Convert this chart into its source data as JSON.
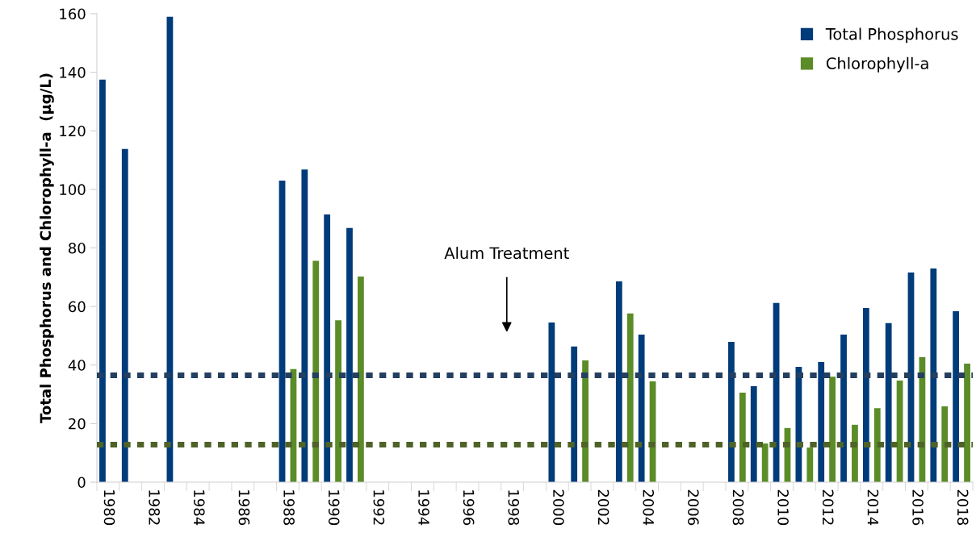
{
  "chart_data": {
    "type": "bar",
    "ylabel": "Total Phosphorus and Chlorophyll-a  (µg/L)",
    "categories": [
      "1980",
      null,
      "1982",
      null,
      "1984",
      null,
      "1986",
      null,
      "1988",
      null,
      "1990",
      null,
      "1992",
      null,
      "1994",
      null,
      "1996",
      null,
      "1998",
      null,
      "2000",
      null,
      "2002",
      null,
      "2004",
      null,
      "2006",
      null,
      "2008",
      null,
      "2010",
      null,
      "2012",
      null,
      "2014",
      null,
      "2016",
      null,
      "2018"
    ],
    "series": [
      {
        "name": "Total Phosphorus",
        "color": "#003b7a",
        "values": [
          137.5,
          113.8,
          null,
          159,
          null,
          null,
          null,
          null,
          103,
          106.8,
          91.4,
          86.8,
          null,
          null,
          null,
          null,
          null,
          null,
          null,
          null,
          54.5,
          46.3,
          null,
          68.6,
          50.4,
          null,
          null,
          null,
          47.9,
          32.8,
          61.2,
          39.4,
          41,
          50.4,
          59.5,
          54.3,
          71.6,
          73,
          58.4
        ]
      },
      {
        "name": "Chlorophyll-a",
        "color": "#5b8c28",
        "values": [
          null,
          null,
          null,
          null,
          null,
          null,
          null,
          null,
          38.6,
          75.6,
          55.3,
          70.2,
          null,
          null,
          null,
          null,
          null,
          null,
          null,
          null,
          null,
          41.6,
          null,
          57.6,
          34.4,
          null,
          null,
          null,
          30.6,
          13.2,
          18.5,
          11.8,
          36,
          19.6,
          25.3,
          34.7,
          42.7,
          25.9,
          40.5
        ]
      }
    ],
    "ylim": [
      0,
      160
    ],
    "yticks": [
      0,
      20,
      40,
      60,
      80,
      100,
      120,
      140,
      160
    ],
    "ref_lines": [
      {
        "axis": "y",
        "value": 36.5,
        "color": "#243f60",
        "line_style": "dotted"
      },
      {
        "axis": "y",
        "value": 12.8,
        "color": "#4f6228",
        "line_style": "dotted"
      }
    ],
    "annotations": [
      "Alum Treatment"
    ],
    "legend": "top right",
    "grid": false
  }
}
